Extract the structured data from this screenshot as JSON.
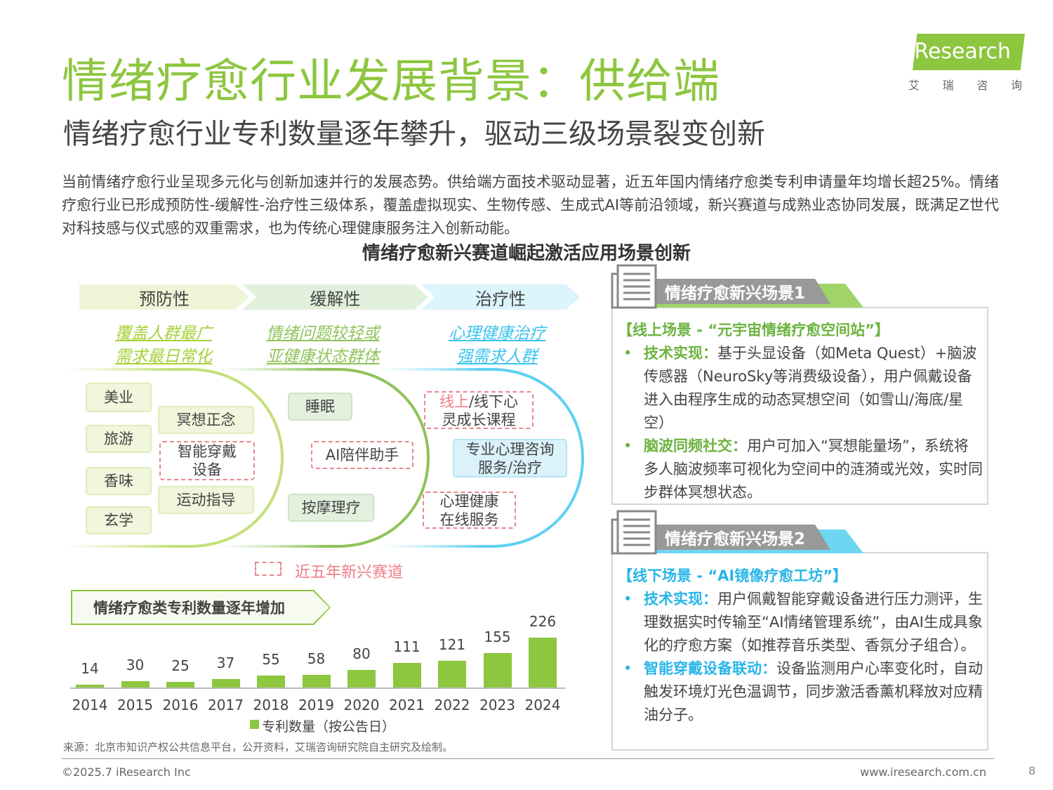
{
  "header": {
    "title": "情绪疗愈行业发展背景：供给端",
    "subtitle": "情绪疗愈行业专利数量逐年攀升，驱动三级场景裂变创新"
  },
  "logo": {
    "brand": "iResearch",
    "cn": [
      "艾",
      "瑞",
      "咨",
      "询"
    ],
    "color": "#8dc63f"
  },
  "intro": "当前情绪疗愈行业呈现多元化与创新加速并行的发展态势。供给端方面技术驱动显著，近五年国内情绪疗愈类专利申请量年均增长超25%。情绪疗愈行业已形成预防性-缓解性-治疗性三级体系，覆盖虚拟现实、生物传感、生成式AI等前沿领域，新兴赛道与成熟业态协同发展，既满足Z世代对科技感与仪式感的双重需求，也为传统心理健康服务注入创新动能。",
  "diagram": {
    "title": "情绪疗愈新兴赛道崛起激活应用场景创新",
    "tiers": [
      {
        "label": "预防性",
        "tag1": "覆盖人群最广",
        "tag2": "需求最日常化",
        "color": "#a6d13b"
      },
      {
        "label": "缓解性",
        "tag1": "情绪问题较轻或",
        "tag2": "亚健康状态群体",
        "color": "#8fc35a"
      },
      {
        "label": "治疗性",
        "tag1": "心理健康治疗",
        "tag2": "强需求人群",
        "color": "#3cc4ef"
      }
    ],
    "items": {
      "meiye": "美业",
      "lvyou": "旅游",
      "xiangwei": "香味",
      "xuanxue": "玄学",
      "mingxiang": "冥想正念",
      "wearable": "智能穿戴设备",
      "yundong": "运动指导",
      "shuimian": "睡眠",
      "ai_companion": "AI陪伴助手",
      "anmo": "按摩理疗",
      "course_a": "线上",
      "course_b": "/线下心灵成长课程",
      "consult": "专业心理咨询服务/治疗",
      "online": "心理健康在线服务"
    },
    "legend": "近五年新兴赛道"
  },
  "patent": {
    "label": "情绪疗愈类专利数量逐年增加",
    "legend": "专利数量（按公告日）"
  },
  "chart_data": {
    "type": "bar",
    "categories": [
      "2014",
      "2015",
      "2016",
      "2017",
      "2018",
      "2019",
      "2020",
      "2021",
      "2022",
      "2023",
      "2024"
    ],
    "values": [
      14,
      30,
      25,
      37,
      55,
      58,
      80,
      111,
      121,
      155,
      226
    ],
    "series_name": "专利数量（按公告日）",
    "color": "#8dc63f"
  },
  "scenes": [
    {
      "header": "情绪疗愈新兴场景1",
      "accent": "#a0d468",
      "title": "【线上场景 - “元宇宙情绪疗愈空间站”】",
      "title_color": "#6cb33f",
      "bullets": [
        {
          "key": "技术实现：",
          "text": "基于头显设备（如Meta Quest）+脑波传感器（NeuroSky等消费级设备），用户佩戴设备进入由程序生成的动态冥想空间（如雪山/海底/星空）"
        },
        {
          "key": "脑波同频社交：",
          "text": "用户可加入“冥想能量场”，系统将多人脑波频率可视化为空间中的涟漪或光效，实时同步群体冥想状态。"
        }
      ]
    },
    {
      "header": "情绪疗愈新兴场景2",
      "accent": "#6fd6f2",
      "title": "【线下场景 - “AI镜像疗愈工坊”】",
      "title_color": "#29b5e8",
      "bullets": [
        {
          "key": "技术实现：",
          "text": "用户佩戴智能穿戴设备进行压力测评，生理数据实时传输至“AI情绪管理系统”，由AI生成具象化的疗愈方案（如推荐音乐类型、香氛分子组合）。"
        },
        {
          "key": "智能穿戴设备联动：",
          "text": "设备监测用户心率变化时，自动触发环境灯光色温调节，同步激活香薰机释放对应精油分子。"
        }
      ]
    }
  ],
  "footer": {
    "source": "来源：北京市知识产权公共信息平台，公开资料，艾瑞咨询研究院自主研究及绘制。",
    "copyright": "©2025.7 iResearch Inc",
    "url": "www.iresearch.com.cn",
    "page": "8",
    "bullet": "•"
  }
}
